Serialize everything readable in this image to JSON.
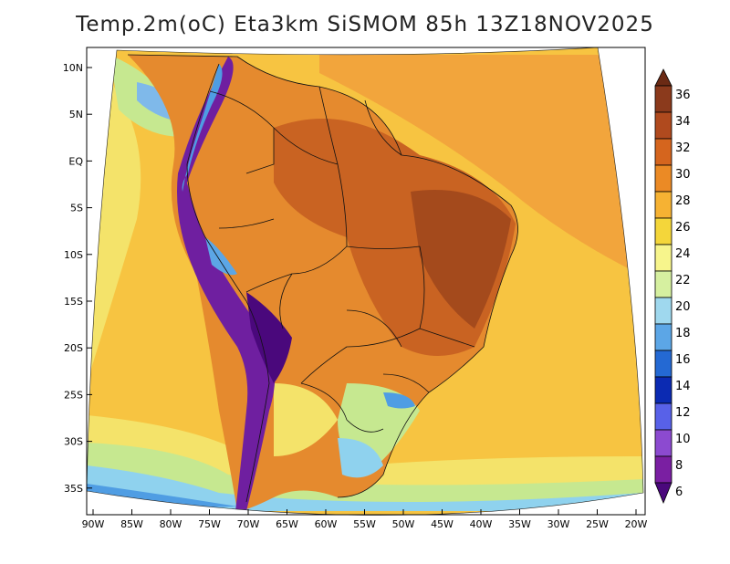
{
  "title": "Temp.2m(oC) Eta3km SiSMOM 85h 13Z18NOV2025",
  "lat_labels": [
    "10N",
    "5N",
    "EQ",
    "5S",
    "10S",
    "15S",
    "20S",
    "25S",
    "30S",
    "35S"
  ],
  "lon_labels": [
    "90W",
    "85W",
    "80W",
    "75W",
    "70W",
    "65W",
    "60W",
    "55W",
    "50W",
    "45W",
    "40W",
    "35W",
    "30W",
    "25W",
    "20W"
  ],
  "colorbar": {
    "labels": [
      "36",
      "34",
      "32",
      "30",
      "28",
      "26",
      "24",
      "22",
      "20",
      "18",
      "16",
      "14",
      "12",
      "10",
      "8",
      "6"
    ],
    "colors": [
      "#6b2a14",
      "#8b3a1c",
      "#b04a1e",
      "#d5651e",
      "#eb8a25",
      "#f6b233",
      "#f4d63a",
      "#f7f58c",
      "#d6f0a0",
      "#9fd8ee",
      "#5ca6e6",
      "#2469d3",
      "#0b2ab2",
      "#5861e8",
      "#8c4ad0",
      "#7a1fa2",
      "#4a087c"
    ]
  },
  "colors": {
    "ocean": "#f7c441",
    "ocean_north": "#f5a83e",
    "cool_coast": "#b9e38a",
    "cold_coast": "#88cdee",
    "hot_land": "#df7a2c",
    "very_hot": "#b5531f",
    "andes": "#7a1fa2",
    "andes_high": "#4a087c"
  }
}
